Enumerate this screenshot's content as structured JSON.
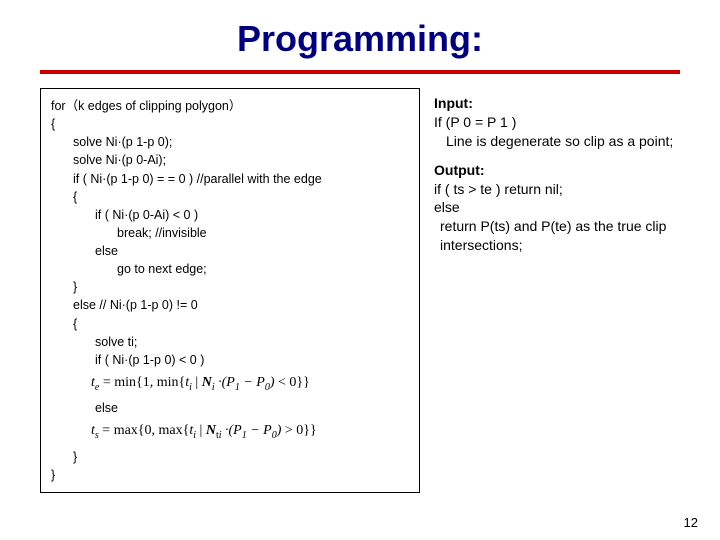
{
  "title": "Programming:",
  "colors": {
    "title": "#000080",
    "underline": "#cc0000",
    "border": "#000000",
    "bg": "#ffffff"
  },
  "fonts": {
    "title_size": 36,
    "code_size": 12.5,
    "right_size": 14,
    "formula_size": 14
  },
  "code": {
    "l01": "for（k edges of clipping polygon）",
    "l02": "{",
    "l03": "solve Ni·(p 1-p 0);",
    "l04": "solve Ni·(p 0-Ai);",
    "l05": "if ( Ni·(p 1-p 0) = = 0 ) //parallel with the edge",
    "l06": "{",
    "l07": "if ( Ni·(p 0-Ai) < 0 )",
    "l08": "break; //invisible",
    "l09": "else",
    "l10": "go to next edge;",
    "l11": "}",
    "l12": "else  // Ni·(p 1-p 0) != 0",
    "l13": "{",
    "l14": "solve ti;",
    "l15": "if ( Ni·(p 1-p 0) < 0 )",
    "l16": "else",
    "l17": "}",
    "l18": "}"
  },
  "formula1_text": "tₑ = min{1, min{tᵢ | Nᵢ ·(P₁ − P₀) < 0}}",
  "formula2_text": "tₛ = max{0, max{tᵢ | Nᵗᵢ ·(P₁ − P₀) > 0}}",
  "right": {
    "input_label": "Input:",
    "input_l1": "If (P 0 = P 1 )",
    "input_l2": "Line is degenerate so clip as a point;",
    "output_label": "Output:",
    "output_l1": "if ( ts > te ) return nil;",
    "output_l2": "else",
    "output_l3": "return P(ts) and P(te) as the true clip intersections;"
  },
  "page_number": "12"
}
